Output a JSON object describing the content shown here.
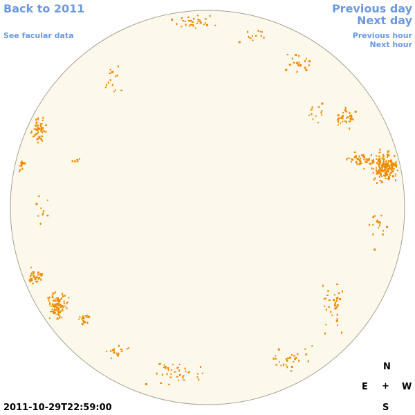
{
  "nav": {
    "back": "Back to 2011",
    "facular": "See facular data",
    "previous_day": "Previous day",
    "next_day": "Next day",
    "previous_hour": "Previous hour",
    "next_hour": "Next hour"
  },
  "timestamp": "2011-10-29T22:59:00",
  "compass": {
    "north": "N",
    "east": "E",
    "west": "W",
    "south": "S",
    "center": "+"
  },
  "colors": {
    "disk_fill": "#fdf8ec",
    "disk_edge": "#a8a090",
    "facula": "#ee8a00",
    "link": "#6a98e0"
  }
}
